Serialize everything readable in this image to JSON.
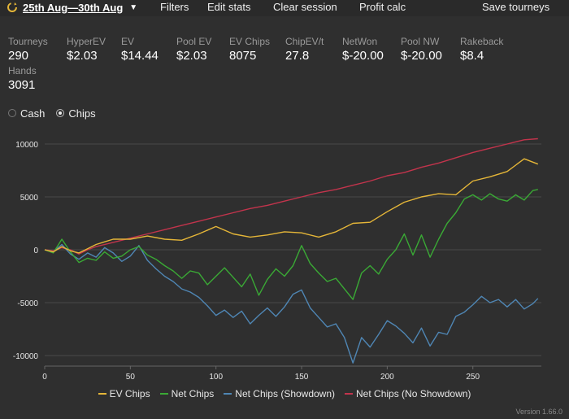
{
  "colors": {
    "background": "#2f2f2f",
    "ev_chips": "#e5b638",
    "net_chips": "#3aa935",
    "net_showdown": "#4f86b4",
    "net_no_showdown": "#c2344c",
    "grid": "#4a4a4a"
  },
  "topbar": {
    "date_range": "25th Aug—30th Aug",
    "filters": "Filters",
    "edit_stats": "Edit stats",
    "clear_session": "Clear session",
    "profit_calc": "Profit calc",
    "save_tourneys": "Save tourneys"
  },
  "stats": [
    {
      "label": "Tourneys",
      "value": "290"
    },
    {
      "label": "HyperEV",
      "value": "$2.03"
    },
    {
      "label": "EV",
      "value": "$14.44"
    },
    {
      "label": "Pool EV",
      "value": "$2.03"
    },
    {
      "label": "EV Chips",
      "value": "8075"
    },
    {
      "label": "ChipEV/t",
      "value": "27.8"
    },
    {
      "label": "NetWon",
      "value": "$-20.00"
    },
    {
      "label": "Pool NW",
      "value": "$-20.00"
    },
    {
      "label": "Rakeback",
      "value": "$8.4"
    },
    {
      "label": "Hands",
      "value": "3091"
    }
  ],
  "mode": {
    "cash": "Cash",
    "chips": "Chips",
    "selected": "chips"
  },
  "chart_data": {
    "type": "line",
    "xlim": [
      0,
      290
    ],
    "ylim": [
      -11000,
      11000
    ],
    "x_ticks": [
      0,
      50,
      100,
      150,
      200,
      250
    ],
    "x_tick_labels": [
      "0",
      "50",
      "100",
      "150",
      "200",
      "250"
    ],
    "y_ticks": [
      10000,
      5000,
      0,
      -5000,
      -10000
    ],
    "y_tick_labels": [
      "10000",
      "5000",
      "0",
      "-5000",
      "-10000"
    ],
    "grid": true,
    "legend_position": "bottom",
    "series": [
      {
        "name": "EV Chips",
        "color": "#e5b638",
        "x": [
          0,
          5,
          10,
          15,
          20,
          25,
          30,
          40,
          50,
          60,
          70,
          80,
          90,
          100,
          110,
          120,
          130,
          140,
          150,
          160,
          170,
          180,
          190,
          200,
          210,
          220,
          230,
          240,
          250,
          260,
          270,
          280,
          288
        ],
        "y": [
          0,
          -200,
          300,
          -100,
          -300,
          100,
          500,
          1000,
          1000,
          1300,
          1000,
          900,
          1500,
          2200,
          1500,
          1200,
          1400,
          1700,
          1600,
          1200,
          1700,
          2500,
          2600,
          3600,
          4500,
          5000,
          5300,
          5200,
          6500,
          6900,
          7400,
          8600,
          8100
        ]
      },
      {
        "name": "Net Chips",
        "color": "#3aa935",
        "x": [
          0,
          5,
          10,
          15,
          20,
          25,
          30,
          35,
          40,
          45,
          50,
          55,
          60,
          65,
          70,
          75,
          80,
          85,
          90,
          95,
          100,
          105,
          110,
          115,
          120,
          125,
          130,
          135,
          140,
          145,
          150,
          155,
          160,
          165,
          170,
          175,
          180,
          185,
          190,
          195,
          200,
          205,
          210,
          215,
          220,
          225,
          230,
          235,
          240,
          245,
          250,
          255,
          260,
          265,
          270,
          275,
          280,
          285,
          288
        ],
        "y": [
          0,
          -300,
          1000,
          -200,
          -1200,
          -800,
          -1000,
          -200,
          -800,
          -600,
          0,
          300,
          -500,
          -900,
          -1500,
          -2000,
          -2700,
          -2000,
          -2200,
          -3300,
          -2500,
          -1700,
          -2600,
          -3500,
          -2300,
          -4300,
          -2800,
          -1800,
          -2500,
          -1500,
          400,
          -1300,
          -2200,
          -3000,
          -2700,
          -3700,
          -4700,
          -2200,
          -1500,
          -2300,
          -900,
          0,
          1500,
          -500,
          1400,
          -700,
          1000,
          2500,
          3500,
          4800,
          5200,
          4700,
          5300,
          4800,
          4600,
          5200,
          4700,
          5600,
          5700
        ]
      },
      {
        "name": "Net Chips (Showdown)",
        "color": "#4f86b4",
        "x": [
          0,
          5,
          10,
          15,
          20,
          25,
          30,
          35,
          40,
          45,
          50,
          55,
          60,
          65,
          70,
          75,
          80,
          85,
          90,
          95,
          100,
          105,
          110,
          115,
          120,
          125,
          130,
          135,
          140,
          145,
          150,
          155,
          160,
          165,
          170,
          175,
          180,
          185,
          190,
          195,
          200,
          205,
          210,
          215,
          220,
          225,
          230,
          235,
          240,
          245,
          250,
          255,
          260,
          265,
          270,
          275,
          280,
          285,
          288
        ],
        "y": [
          0,
          -200,
          500,
          -400,
          -900,
          -300,
          -700,
          200,
          -300,
          -1100,
          -600,
          400,
          -1000,
          -1800,
          -2500,
          -3000,
          -3700,
          -4000,
          -4500,
          -5300,
          -6200,
          -5700,
          -6400,
          -5800,
          -7000,
          -6200,
          -5500,
          -6300,
          -5400,
          -4200,
          -3800,
          -5500,
          -6400,
          -7300,
          -7000,
          -8300,
          -10700,
          -8300,
          -9200,
          -8000,
          -6700,
          -7200,
          -7900,
          -8800,
          -7400,
          -9100,
          -7800,
          -8000,
          -6300,
          -5900,
          -5200,
          -4400,
          -5000,
          -4700,
          -5400,
          -4700,
          -5600,
          -5100,
          -4600
        ]
      },
      {
        "name": "Net Chips (No Showdown)",
        "color": "#c2344c",
        "x": [
          0,
          5,
          10,
          15,
          20,
          25,
          30,
          40,
          50,
          60,
          70,
          80,
          90,
          100,
          110,
          120,
          130,
          140,
          150,
          160,
          170,
          180,
          190,
          200,
          210,
          220,
          230,
          240,
          250,
          260,
          270,
          280,
          288
        ],
        "y": [
          0,
          -100,
          200,
          0,
          -400,
          0,
          300,
          700,
          1100,
          1500,
          1900,
          2300,
          2700,
          3100,
          3500,
          3900,
          4200,
          4600,
          5000,
          5400,
          5700,
          6100,
          6500,
          7000,
          7300,
          7800,
          8200,
          8700,
          9200,
          9600,
          10000,
          10400,
          10500
        ]
      }
    ]
  },
  "legend": [
    {
      "label": "EV Chips",
      "color": "#e5b638"
    },
    {
      "label": "Net Chips",
      "color": "#3aa935"
    },
    {
      "label": "Net Chips (Showdown)",
      "color": "#4f86b4"
    },
    {
      "label": "Net Chips (No Showdown)",
      "color": "#c2344c"
    }
  ],
  "version": "Version 1.66.0"
}
